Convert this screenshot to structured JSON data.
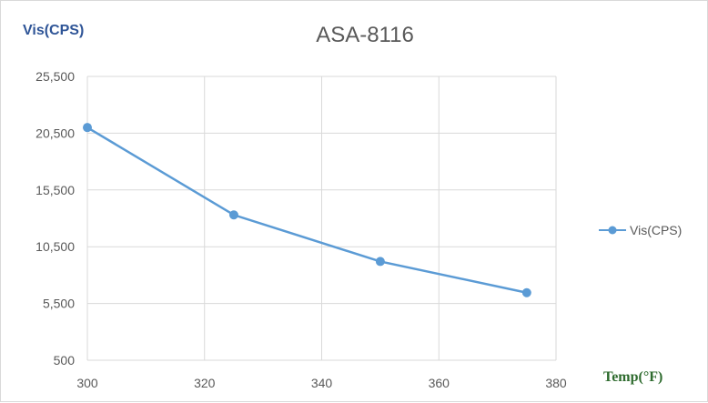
{
  "chart_data": {
    "type": "line",
    "title": "ASA-8116",
    "ylabel": "Vis(CPS)",
    "xlabel": "Temp(°F)",
    "x": [
      300,
      325,
      350,
      375
    ],
    "series": [
      {
        "name": "Vis(CPS)",
        "values": [
          21000,
          13300,
          9200,
          6450
        ],
        "color": "#5b9bd5"
      }
    ],
    "xlim": [
      300,
      380
    ],
    "xticks": [
      300,
      320,
      340,
      360,
      380
    ],
    "xtick_labels": [
      "300",
      "320",
      "340",
      "360",
      "380"
    ],
    "ylim": [
      500,
      25500
    ],
    "yticks": [
      500,
      5500,
      10500,
      15500,
      20500,
      25500
    ],
    "ytick_labels": [
      "500",
      "5,500",
      "10,500",
      "15,500",
      "20,500",
      "25,500"
    ],
    "grid": true,
    "legend_position": "right"
  }
}
